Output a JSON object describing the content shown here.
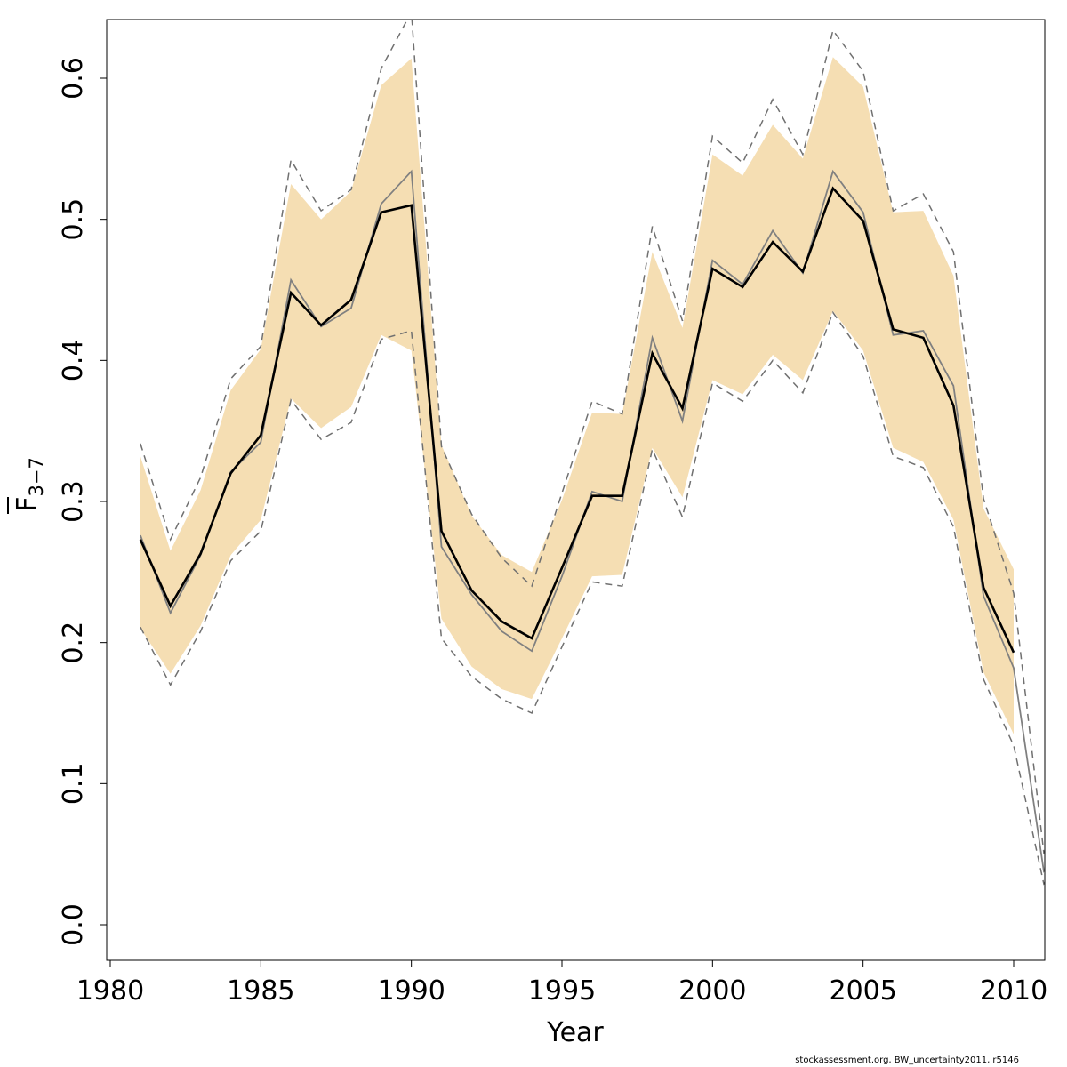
{
  "chart_data": {
    "type": "line",
    "xlabel": "Year",
    "ylabel_main": "F",
    "ylabel_sub": "3−7",
    "xlim": [
      1980,
      2011
    ],
    "ylim": [
      0.0,
      0.64
    ],
    "xticks": [
      1980,
      1985,
      1990,
      1995,
      2000,
      2005,
      2010
    ],
    "xtick_labels": [
      "1980",
      "1985",
      "1990",
      "1995",
      "2000",
      "2005",
      "2010"
    ],
    "yticks": [
      0.0,
      0.1,
      0.2,
      0.3,
      0.4,
      0.5,
      0.6
    ],
    "ytick_labels": [
      "0.0",
      "0.1",
      "0.2",
      "0.3",
      "0.4",
      "0.5",
      "0.6"
    ],
    "colors": {
      "band": "#f5deb3",
      "estimate": "#000000",
      "comparison": "#808080",
      "bounds": "#707070"
    },
    "band": {
      "x": [
        1981,
        1982,
        1983,
        1984,
        1985,
        1986,
        1987,
        1988,
        1989,
        1990,
        1991,
        1992,
        1993,
        1994,
        1995,
        1996,
        1997,
        1998,
        1999,
        2000,
        2001,
        2002,
        2003,
        2004,
        2005,
        2006,
        2007,
        2008,
        2009,
        2010
      ],
      "lower": [
        0.21,
        0.178,
        0.212,
        0.262,
        0.287,
        0.373,
        0.352,
        0.367,
        0.418,
        0.407,
        0.217,
        0.183,
        0.167,
        0.16,
        0.203,
        0.247,
        0.248,
        0.338,
        0.303,
        0.386,
        0.376,
        0.404,
        0.386,
        0.435,
        0.407,
        0.338,
        0.328,
        0.287,
        0.179,
        0.135
      ],
      "upper": [
        0.332,
        0.265,
        0.308,
        0.379,
        0.408,
        0.525,
        0.5,
        0.52,
        0.595,
        0.614,
        0.34,
        0.29,
        0.262,
        0.25,
        0.301,
        0.363,
        0.362,
        0.477,
        0.423,
        0.546,
        0.531,
        0.567,
        0.543,
        0.615,
        0.594,
        0.505,
        0.506,
        0.46,
        0.295,
        0.252
      ]
    },
    "series": [
      {
        "role": "estimate",
        "x": [
          1981,
          1982,
          1983,
          1984,
          1985,
          1986,
          1987,
          1988,
          1989,
          1990,
          1991,
          1992,
          1993,
          1994,
          1995,
          1996,
          1997,
          1998,
          1999,
          2000,
          2001,
          2002,
          2003,
          2004,
          2005,
          2006,
          2007,
          2008,
          2009,
          2010
        ],
        "values": [
          0.273,
          0.226,
          0.263,
          0.32,
          0.347,
          0.448,
          0.425,
          0.443,
          0.505,
          0.51,
          0.279,
          0.237,
          0.215,
          0.203,
          0.253,
          0.304,
          0.304,
          0.405,
          0.366,
          0.465,
          0.452,
          0.484,
          0.463,
          0.522,
          0.499,
          0.422,
          0.416,
          0.368,
          0.239,
          0.193
        ]
      },
      {
        "role": "comparison",
        "x": [
          1981,
          1982,
          1983,
          1984,
          1985,
          1986,
          1987,
          1988,
          1989,
          1990,
          1991,
          1992,
          1993,
          1994,
          1995,
          1996,
          1997,
          1998,
          1999,
          2000,
          2001,
          2002,
          2003,
          2004,
          2005,
          2006,
          2007,
          2008,
          2009,
          2010,
          2011,
          2012
        ],
        "values": [
          0.276,
          0.221,
          0.262,
          0.321,
          0.342,
          0.457,
          0.424,
          0.437,
          0.511,
          0.534,
          0.268,
          0.234,
          0.208,
          0.194,
          0.247,
          0.307,
          0.3,
          0.416,
          0.357,
          0.471,
          0.454,
          0.492,
          0.462,
          0.534,
          0.505,
          0.418,
          0.421,
          0.382,
          0.233,
          0.182,
          0.038,
          0.065
        ]
      },
      {
        "role": "upper-bound",
        "x": [
          1981,
          1982,
          1983,
          1984,
          1985,
          1986,
          1987,
          1988,
          1989,
          1990,
          1991,
          1992,
          1993,
          1994,
          1995,
          1996,
          1997,
          1998,
          1999,
          2000,
          2001,
          2002,
          2003,
          2004,
          2005,
          2006,
          2007,
          2008,
          2009,
          2010,
          2011,
          2012
        ],
        "values": [
          0.341,
          0.273,
          0.317,
          0.387,
          0.41,
          0.542,
          0.506,
          0.521,
          0.607,
          0.647,
          0.339,
          0.291,
          0.26,
          0.24,
          0.306,
          0.371,
          0.362,
          0.495,
          0.428,
          0.559,
          0.54,
          0.585,
          0.546,
          0.634,
          0.605,
          0.506,
          0.518,
          0.477,
          0.302,
          0.235,
          0.051,
          0.075
        ]
      },
      {
        "role": "lower-bound",
        "x": [
          1981,
          1982,
          1983,
          1984,
          1985,
          1986,
          1987,
          1988,
          1989,
          1990,
          1991,
          1992,
          1993,
          1994,
          1995,
          1996,
          1997,
          1998,
          1999,
          2000,
          2001,
          2002,
          2003,
          2004,
          2005,
          2006,
          2007,
          2008,
          2009,
          2010,
          2011,
          2012
        ],
        "values": [
          0.211,
          0.17,
          0.208,
          0.258,
          0.279,
          0.372,
          0.344,
          0.356,
          0.415,
          0.421,
          0.203,
          0.176,
          0.16,
          0.15,
          0.197,
          0.243,
          0.24,
          0.337,
          0.289,
          0.384,
          0.371,
          0.4,
          0.377,
          0.434,
          0.403,
          0.332,
          0.324,
          0.282,
          0.174,
          0.127,
          0.029,
          0.055
        ]
      }
    ]
  },
  "footer": {
    "text": "stockassessment.org, BW_uncertainty2011, r5146"
  }
}
